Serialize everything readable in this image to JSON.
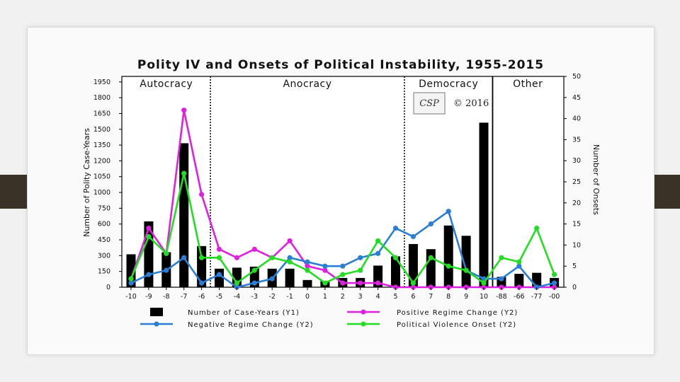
{
  "chart_data": {
    "type": "bar",
    "title": "Polity IV and Onsets of Political Instability, 1955-2015",
    "ylabel": "Number of Polity Case-Years",
    "y2label": "Number of Onsets",
    "categories": [
      "-10",
      "-9",
      "-8",
      "-7",
      "-6",
      "-5",
      "-4",
      "-3",
      "-2",
      "-1",
      "0",
      "1",
      "2",
      "3",
      "4",
      "5",
      "6",
      "7",
      "8",
      "9",
      "10",
      "-88",
      "-66",
      "-77",
      "-00"
    ],
    "ylim": [
      0,
      2050
    ],
    "y_ticks": [
      "0",
      "150",
      "300",
      "450",
      "600",
      "750",
      "1000",
      "1050",
      "1200",
      "1350",
      "1500",
      "1650",
      "1800",
      "1950"
    ],
    "y2lim": [
      0,
      50
    ],
    "y2_ticks": [
      "0",
      "5",
      "10",
      "15",
      "20",
      "25",
      "30",
      "35",
      "40",
      "45",
      "50"
    ],
    "regions": [
      {
        "label": "Autocracy",
        "from": "-10",
        "to": "-6"
      },
      {
        "label": "Anocracy",
        "from": "-5",
        "to": "5"
      },
      {
        "label": "Democracy",
        "from": "6",
        "to": "10"
      },
      {
        "label": "Other",
        "from": "-88",
        "to": "-00"
      }
    ],
    "copyright": "© 2016",
    "logo_text": "CSP",
    "series": [
      {
        "name": "Number of Case-Years (Y1)",
        "axis": "y1",
        "kind": "bar",
        "color": "#000000",
        "values": [
          320,
          640,
          340,
          1400,
          400,
          180,
          190,
          200,
          180,
          180,
          70,
          60,
          90,
          90,
          210,
          300,
          420,
          370,
          600,
          500,
          1600,
          100,
          130,
          140,
          90
        ]
      },
      {
        "name": "Positive Regime Change (Y2)",
        "axis": "y2",
        "kind": "line",
        "color": "#e020e0",
        "values": [
          2,
          14,
          8,
          42,
          22,
          9,
          7,
          9,
          7,
          11,
          5,
          4,
          1,
          1,
          1,
          0,
          0,
          0,
          0,
          0,
          0,
          0,
          0,
          0,
          0
        ]
      },
      {
        "name": "Negative Regime Change (Y2)",
        "axis": "y2",
        "kind": "line",
        "color": "#2a7fd4",
        "values": [
          1,
          3,
          4,
          7,
          1,
          3,
          0,
          1,
          2,
          7,
          6,
          5,
          5,
          7,
          8,
          14,
          12,
          15,
          18,
          4,
          2,
          2,
          5,
          0,
          1
        ]
      },
      {
        "name": "Political Violence Onset (Y2)",
        "axis": "y2",
        "kind": "line",
        "color": "#22dd22",
        "values": [
          2,
          12,
          8,
          27,
          7,
          7,
          1,
          4,
          7,
          6,
          4,
          1,
          3,
          4,
          11,
          7,
          1,
          7,
          5,
          4,
          1,
          7,
          6,
          14,
          3
        ]
      }
    ]
  }
}
